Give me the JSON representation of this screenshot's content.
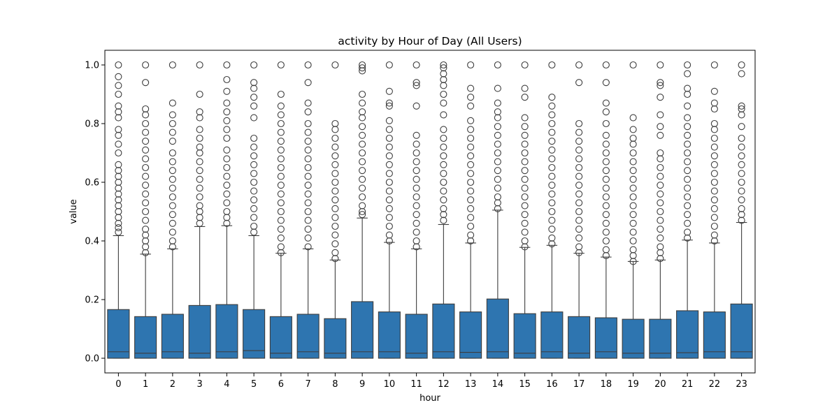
{
  "chart_data": {
    "type": "box",
    "title": "activity by Hour of Day (All Users)",
    "xlabel": "hour",
    "ylabel": "value",
    "ylim": [
      -0.05,
      1.05
    ],
    "yticks": [
      "0.0",
      "0.2",
      "0.4",
      "0.6",
      "0.8",
      "1.0"
    ],
    "ytick_values": [
      0.0,
      0.2,
      0.4,
      0.6,
      0.8,
      1.0
    ],
    "color": "#2e75b0",
    "edge_color": "#3d3d3d",
    "categories": [
      "0",
      "1",
      "2",
      "3",
      "4",
      "5",
      "6",
      "7",
      "8",
      "9",
      "10",
      "11",
      "12",
      "13",
      "14",
      "15",
      "16",
      "17",
      "18",
      "19",
      "20",
      "21",
      "22",
      "23"
    ],
    "boxes": [
      {
        "min": 0.0,
        "q1": 0.0,
        "median": 0.022,
        "q3": 0.166,
        "whisker_high": 0.418,
        "outliers": [
          0.43,
          0.445,
          0.46,
          0.48,
          0.5,
          0.52,
          0.54,
          0.56,
          0.58,
          0.6,
          0.62,
          0.64,
          0.66,
          0.7,
          0.73,
          0.76,
          0.78,
          0.82,
          0.84,
          0.86,
          0.9,
          0.93,
          0.96,
          1.0
        ]
      },
      {
        "min": 0.0,
        "q1": 0.0,
        "median": 0.017,
        "q3": 0.142,
        "whisker_high": 0.355,
        "outliers": [
          0.36,
          0.38,
          0.4,
          0.42,
          0.44,
          0.47,
          0.5,
          0.53,
          0.56,
          0.59,
          0.62,
          0.65,
          0.68,
          0.71,
          0.74,
          0.77,
          0.8,
          0.83,
          0.85,
          0.94,
          1.0
        ]
      },
      {
        "min": 0.0,
        "q1": 0.0,
        "median": 0.022,
        "q3": 0.15,
        "whisker_high": 0.373,
        "outliers": [
          0.38,
          0.4,
          0.43,
          0.46,
          0.49,
          0.52,
          0.55,
          0.58,
          0.61,
          0.64,
          0.67,
          0.7,
          0.74,
          0.77,
          0.8,
          0.83,
          0.87,
          1.0
        ]
      },
      {
        "min": 0.0,
        "q1": 0.0,
        "median": 0.017,
        "q3": 0.18,
        "whisker_high": 0.449,
        "outliers": [
          0.46,
          0.48,
          0.5,
          0.52,
          0.55,
          0.58,
          0.61,
          0.64,
          0.67,
          0.7,
          0.72,
          0.75,
          0.78,
          0.82,
          0.84,
          0.9,
          1.0
        ]
      },
      {
        "min": 0.0,
        "q1": 0.0,
        "median": 0.022,
        "q3": 0.183,
        "whisker_high": 0.452,
        "outliers": [
          0.46,
          0.48,
          0.5,
          0.53,
          0.56,
          0.59,
          0.62,
          0.65,
          0.68,
          0.71,
          0.75,
          0.78,
          0.81,
          0.84,
          0.87,
          0.91,
          0.95,
          1.0
        ]
      },
      {
        "min": 0.0,
        "q1": 0.0,
        "median": 0.026,
        "q3": 0.166,
        "whisker_high": 0.418,
        "outliers": [
          0.43,
          0.45,
          0.48,
          0.51,
          0.54,
          0.57,
          0.6,
          0.63,
          0.66,
          0.69,
          0.72,
          0.75,
          0.82,
          0.86,
          0.89,
          0.92,
          0.94,
          1.0
        ]
      },
      {
        "min": 0.0,
        "q1": 0.0,
        "median": 0.017,
        "q3": 0.142,
        "whisker_high": 0.358,
        "outliers": [
          0.36,
          0.38,
          0.41,
          0.44,
          0.47,
          0.5,
          0.53,
          0.56,
          0.59,
          0.62,
          0.65,
          0.68,
          0.71,
          0.74,
          0.77,
          0.8,
          0.83,
          0.86,
          0.9,
          1.0
        ]
      },
      {
        "min": 0.0,
        "q1": 0.0,
        "median": 0.022,
        "q3": 0.15,
        "whisker_high": 0.373,
        "outliers": [
          0.38,
          0.41,
          0.44,
          0.47,
          0.5,
          0.53,
          0.56,
          0.59,
          0.62,
          0.65,
          0.68,
          0.71,
          0.74,
          0.77,
          0.8,
          0.84,
          0.87,
          0.94,
          1.0
        ]
      },
      {
        "min": 0.0,
        "q1": 0.0,
        "median": 0.017,
        "q3": 0.135,
        "whisker_high": 0.335,
        "outliers": [
          0.34,
          0.36,
          0.39,
          0.42,
          0.45,
          0.48,
          0.51,
          0.54,
          0.57,
          0.6,
          0.63,
          0.66,
          0.69,
          0.72,
          0.75,
          0.78,
          0.8,
          1.0
        ]
      },
      {
        "min": 0.0,
        "q1": 0.0,
        "median": 0.022,
        "q3": 0.193,
        "whisker_high": 0.478,
        "outliers": [
          0.49,
          0.5,
          0.52,
          0.55,
          0.58,
          0.61,
          0.64,
          0.67,
          0.7,
          0.73,
          0.76,
          0.79,
          0.82,
          0.84,
          0.87,
          0.9,
          0.98,
          0.99,
          1.0
        ]
      },
      {
        "min": 0.0,
        "q1": 0.0,
        "median": 0.022,
        "q3": 0.158,
        "whisker_high": 0.395,
        "outliers": [
          0.4,
          0.42,
          0.45,
          0.48,
          0.51,
          0.54,
          0.57,
          0.6,
          0.63,
          0.66,
          0.69,
          0.72,
          0.75,
          0.78,
          0.81,
          0.86,
          0.87,
          0.91,
          1.0
        ]
      },
      {
        "min": 0.0,
        "q1": 0.0,
        "median": 0.017,
        "q3": 0.15,
        "whisker_high": 0.373,
        "outliers": [
          0.38,
          0.4,
          0.43,
          0.46,
          0.49,
          0.52,
          0.55,
          0.58,
          0.61,
          0.64,
          0.67,
          0.7,
          0.73,
          0.76,
          0.86,
          0.93,
          0.94,
          1.0
        ]
      },
      {
        "min": 0.0,
        "q1": 0.0,
        "median": 0.022,
        "q3": 0.185,
        "whisker_high": 0.456,
        "outliers": [
          0.47,
          0.49,
          0.51,
          0.54,
          0.57,
          0.6,
          0.63,
          0.66,
          0.69,
          0.72,
          0.75,
          0.78,
          0.83,
          0.87,
          0.9,
          0.93,
          0.95,
          0.97,
          0.99,
          1.0
        ]
      },
      {
        "min": 0.0,
        "q1": 0.0,
        "median": 0.02,
        "q3": 0.158,
        "whisker_high": 0.393,
        "outliers": [
          0.4,
          0.42,
          0.45,
          0.48,
          0.51,
          0.54,
          0.57,
          0.6,
          0.63,
          0.66,
          0.69,
          0.72,
          0.75,
          0.78,
          0.81,
          0.86,
          0.89,
          0.92,
          1.0
        ]
      },
      {
        "min": 0.0,
        "q1": 0.0,
        "median": 0.022,
        "q3": 0.202,
        "whisker_high": 0.505,
        "outliers": [
          0.51,
          0.53,
          0.55,
          0.58,
          0.61,
          0.64,
          0.67,
          0.7,
          0.73,
          0.76,
          0.79,
          0.82,
          0.84,
          0.87,
          0.92,
          1.0
        ]
      },
      {
        "min": 0.0,
        "q1": 0.0,
        "median": 0.017,
        "q3": 0.152,
        "whisker_high": 0.378,
        "outliers": [
          0.38,
          0.4,
          0.43,
          0.46,
          0.49,
          0.52,
          0.55,
          0.58,
          0.61,
          0.64,
          0.67,
          0.7,
          0.73,
          0.76,
          0.79,
          0.82,
          0.89,
          0.92,
          1.0
        ]
      },
      {
        "min": 0.0,
        "q1": 0.0,
        "median": 0.022,
        "q3": 0.158,
        "whisker_high": 0.385,
        "outliers": [
          0.39,
          0.41,
          0.44,
          0.47,
          0.5,
          0.53,
          0.56,
          0.59,
          0.62,
          0.65,
          0.68,
          0.71,
          0.74,
          0.77,
          0.8,
          0.83,
          0.86,
          0.89,
          1.0
        ]
      },
      {
        "min": 0.0,
        "q1": 0.0,
        "median": 0.017,
        "q3": 0.142,
        "whisker_high": 0.358,
        "outliers": [
          0.36,
          0.38,
          0.41,
          0.44,
          0.47,
          0.5,
          0.53,
          0.56,
          0.59,
          0.62,
          0.65,
          0.68,
          0.71,
          0.74,
          0.77,
          0.8,
          0.94,
          1.0
        ]
      },
      {
        "min": 0.0,
        "q1": 0.0,
        "median": 0.022,
        "q3": 0.138,
        "whisker_high": 0.345,
        "outliers": [
          0.35,
          0.37,
          0.4,
          0.43,
          0.46,
          0.49,
          0.52,
          0.55,
          0.58,
          0.61,
          0.64,
          0.67,
          0.7,
          0.73,
          0.76,
          0.8,
          0.84,
          0.87,
          0.94,
          1.0
        ]
      },
      {
        "min": 0.0,
        "q1": 0.0,
        "median": 0.017,
        "q3": 0.133,
        "whisker_high": 0.33,
        "outliers": [
          0.33,
          0.35,
          0.37,
          0.4,
          0.43,
          0.46,
          0.49,
          0.52,
          0.55,
          0.58,
          0.61,
          0.64,
          0.67,
          0.7,
          0.73,
          0.75,
          0.78,
          0.82,
          1.0
        ]
      },
      {
        "min": 0.0,
        "q1": 0.0,
        "median": 0.017,
        "q3": 0.133,
        "whisker_high": 0.335,
        "outliers": [
          0.34,
          0.36,
          0.38,
          0.41,
          0.44,
          0.47,
          0.5,
          0.53,
          0.56,
          0.59,
          0.62,
          0.65,
          0.68,
          0.7,
          0.76,
          0.79,
          0.83,
          0.89,
          0.93,
          0.94,
          1.0
        ]
      },
      {
        "min": 0.0,
        "q1": 0.0,
        "median": 0.019,
        "q3": 0.162,
        "whisker_high": 0.403,
        "outliers": [
          0.41,
          0.43,
          0.46,
          0.49,
          0.52,
          0.55,
          0.58,
          0.61,
          0.64,
          0.67,
          0.7,
          0.73,
          0.76,
          0.79,
          0.82,
          0.86,
          0.9,
          0.92,
          0.97,
          1.0
        ]
      },
      {
        "min": 0.0,
        "q1": 0.0,
        "median": 0.022,
        "q3": 0.158,
        "whisker_high": 0.393,
        "outliers": [
          0.4,
          0.42,
          0.45,
          0.48,
          0.51,
          0.54,
          0.57,
          0.6,
          0.63,
          0.66,
          0.69,
          0.72,
          0.75,
          0.78,
          0.8,
          0.85,
          0.87,
          0.91,
          1.0
        ]
      },
      {
        "min": 0.0,
        "q1": 0.0,
        "median": 0.022,
        "q3": 0.185,
        "whisker_high": 0.463,
        "outliers": [
          0.47,
          0.49,
          0.51,
          0.54,
          0.57,
          0.6,
          0.63,
          0.66,
          0.69,
          0.72,
          0.75,
          0.79,
          0.83,
          0.85,
          0.86,
          0.97,
          1.0
        ]
      }
    ]
  }
}
